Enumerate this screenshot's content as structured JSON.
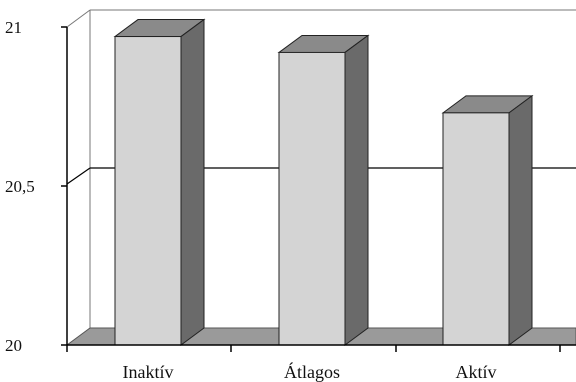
{
  "chart_data": {
    "type": "bar",
    "title": "",
    "xlabel": "",
    "ylabel": "",
    "categories": [
      "Inaktív",
      "Átlagos",
      "Aktív"
    ],
    "values": [
      20.97,
      20.92,
      20.73
    ],
    "ylim": [
      20,
      21
    ],
    "ytick_labels": [
      "20",
      "20,5",
      "21"
    ],
    "ytick_values": [
      20,
      20.5,
      21
    ],
    "grid": true,
    "legend": "none",
    "colors": {
      "bar_front": "#d4d4d4",
      "bar_top": "#8a8a8a",
      "bar_side": "#6a6a6a",
      "floor": "#9a9a9a",
      "axis": "#000000"
    }
  }
}
